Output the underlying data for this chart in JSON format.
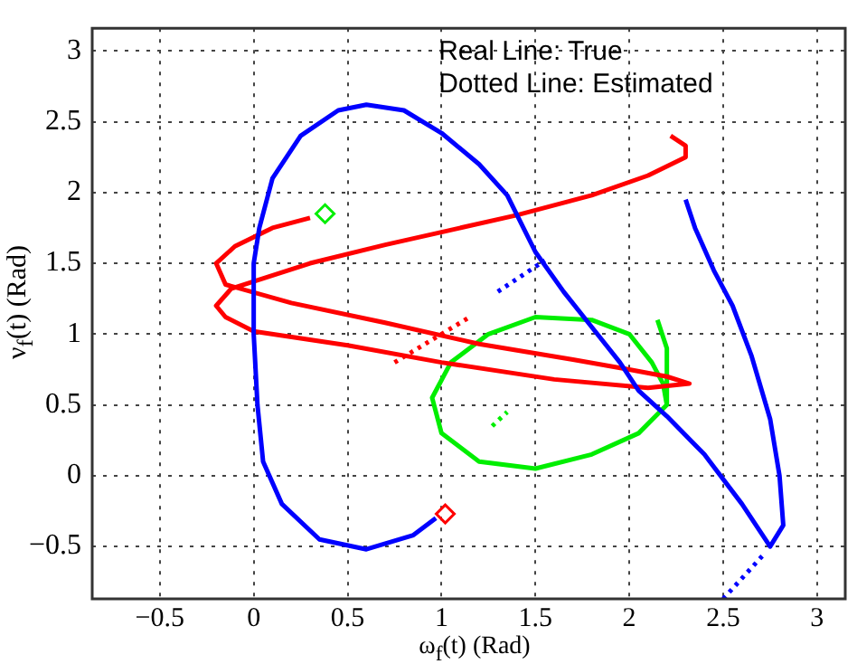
{
  "chart_data": {
    "type": "line",
    "xlabel": "ω$_{f}$(t) (Rad)",
    "ylabel": "ν$_{f}$(t) (Rad)",
    "annotations": [
      "Real Line: True",
      "Dotted Line: Estimated"
    ],
    "xlim": [
      -0.86,
      3.15
    ],
    "ylim": [
      -0.87,
      3.16
    ],
    "xticks": [
      -0.5,
      0,
      0.5,
      1,
      1.5,
      2,
      2.5,
      3
    ],
    "yticks": [
      -0.5,
      0,
      0.5,
      1,
      1.5,
      2,
      2.5,
      3
    ],
    "grid": true,
    "line_style": "solid",
    "marker": "none",
    "series": [
      {
        "color": "#0000ff",
        "x": [
          0.97,
          0.85,
          0.6,
          0.35,
          0.15,
          0.05,
          0.02,
          0.0,
          0.0,
          0.03,
          0.1,
          0.25,
          0.45,
          0.6,
          0.8,
          1.0,
          1.2,
          1.35,
          1.5,
          1.65,
          1.8,
          1.95,
          2.05,
          2.2,
          2.4,
          2.6,
          2.75,
          2.82,
          2.8,
          2.75,
          2.65,
          2.55,
          2.45,
          2.35,
          2.3
        ],
        "values": [
          -0.3,
          -0.42,
          -0.52,
          -0.45,
          -0.2,
          0.1,
          0.5,
          1.0,
          1.5,
          1.75,
          2.1,
          2.4,
          2.58,
          2.62,
          2.58,
          2.42,
          2.2,
          1.98,
          1.58,
          1.3,
          1.05,
          0.8,
          0.6,
          0.42,
          0.15,
          -0.2,
          -0.5,
          -0.35,
          0.0,
          0.4,
          0.85,
          1.2,
          1.45,
          1.75,
          1.95
        ]
      },
      {
        "color": "#ff0000",
        "x": [
          0.3,
          0.1,
          -0.1,
          -0.2,
          -0.15,
          0.2,
          0.7,
          1.2,
          1.7,
          2.0,
          2.2,
          2.32,
          2.1,
          1.6,
          1.0,
          0.5,
          0.0,
          -0.15,
          -0.2,
          -0.12,
          0.3,
          0.7,
          1.0,
          1.4,
          1.8,
          2.1,
          2.3,
          2.3,
          2.22
        ],
        "values": [
          1.82,
          1.75,
          1.62,
          1.5,
          1.35,
          1.22,
          1.08,
          0.93,
          0.82,
          0.75,
          0.7,
          0.65,
          0.62,
          0.68,
          0.8,
          0.92,
          1.02,
          1.12,
          1.2,
          1.32,
          1.5,
          1.63,
          1.72,
          1.84,
          1.98,
          2.12,
          2.25,
          2.33,
          2.4
        ]
      },
      {
        "color": "#00ee00",
        "x": [
          2.2,
          2.05,
          1.8,
          1.5,
          1.2,
          1.0,
          0.95,
          1.05,
          1.25,
          1.5,
          1.8,
          2.0,
          2.12,
          2.18,
          2.2,
          2.2,
          2.15
        ],
        "values": [
          0.5,
          0.3,
          0.15,
          0.05,
          0.1,
          0.3,
          0.55,
          0.8,
          1.0,
          1.12,
          1.1,
          1.0,
          0.8,
          0.65,
          0.5,
          0.9,
          1.1
        ]
      },
      {
        "color": "#0000ff",
        "line_style": "dotted",
        "x": [
          1.3,
          1.55
        ],
        "values": [
          1.3,
          1.52
        ]
      },
      {
        "color": "#0000ff",
        "line_style": "dotted",
        "x": [
          2.5,
          2.72
        ],
        "values": [
          -0.87,
          -0.55
        ]
      },
      {
        "color": "#ff0000",
        "line_style": "dotted",
        "x": [
          0.75,
          1.15
        ],
        "values": [
          0.8,
          1.12
        ]
      },
      {
        "color": "#00ee00",
        "line_style": "dotted",
        "x": [
          1.27,
          1.35
        ],
        "values": [
          0.35,
          0.45
        ]
      },
      {
        "type": "scatter",
        "marker": "diamond",
        "color": "#ff0000",
        "x": [
          1.02
        ],
        "values": [
          -0.27
        ]
      },
      {
        "type": "scatter",
        "marker": "diamond",
        "color": "#00ee00",
        "x": [
          0.38
        ],
        "values": [
          1.85
        ]
      }
    ]
  }
}
